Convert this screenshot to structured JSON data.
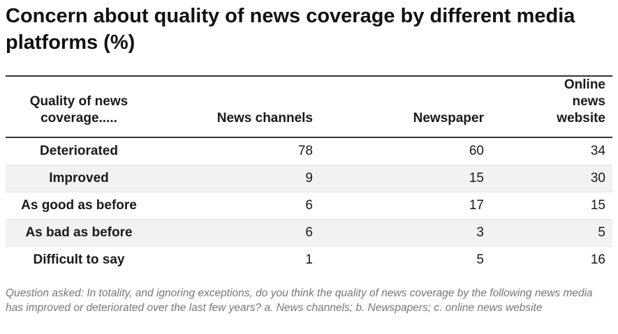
{
  "title": "Concern about quality of news coverage by different media platforms (%)",
  "chart_data": {
    "type": "table",
    "columns": [
      "Quality of news coverage.....",
      "News channels",
      "Newspaper",
      "Online news website"
    ],
    "rows": [
      {
        "label": "Deteriorated",
        "values": [
          78,
          60,
          34
        ]
      },
      {
        "label": "Improved",
        "values": [
          9,
          15,
          30
        ]
      },
      {
        "label": "As good as before",
        "values": [
          6,
          17,
          15
        ]
      },
      {
        "label": "As bad as before",
        "values": [
          6,
          3,
          5
        ]
      },
      {
        "label": "Difficult to say",
        "values": [
          1,
          5,
          16
        ]
      }
    ]
  },
  "note": "Question asked: In totality, and ignoring exceptions, do you think the quality of news coverage by the following news media has improved or deteriorated over the last few years? a. News channels; b. Newspapers; c. online news website"
}
